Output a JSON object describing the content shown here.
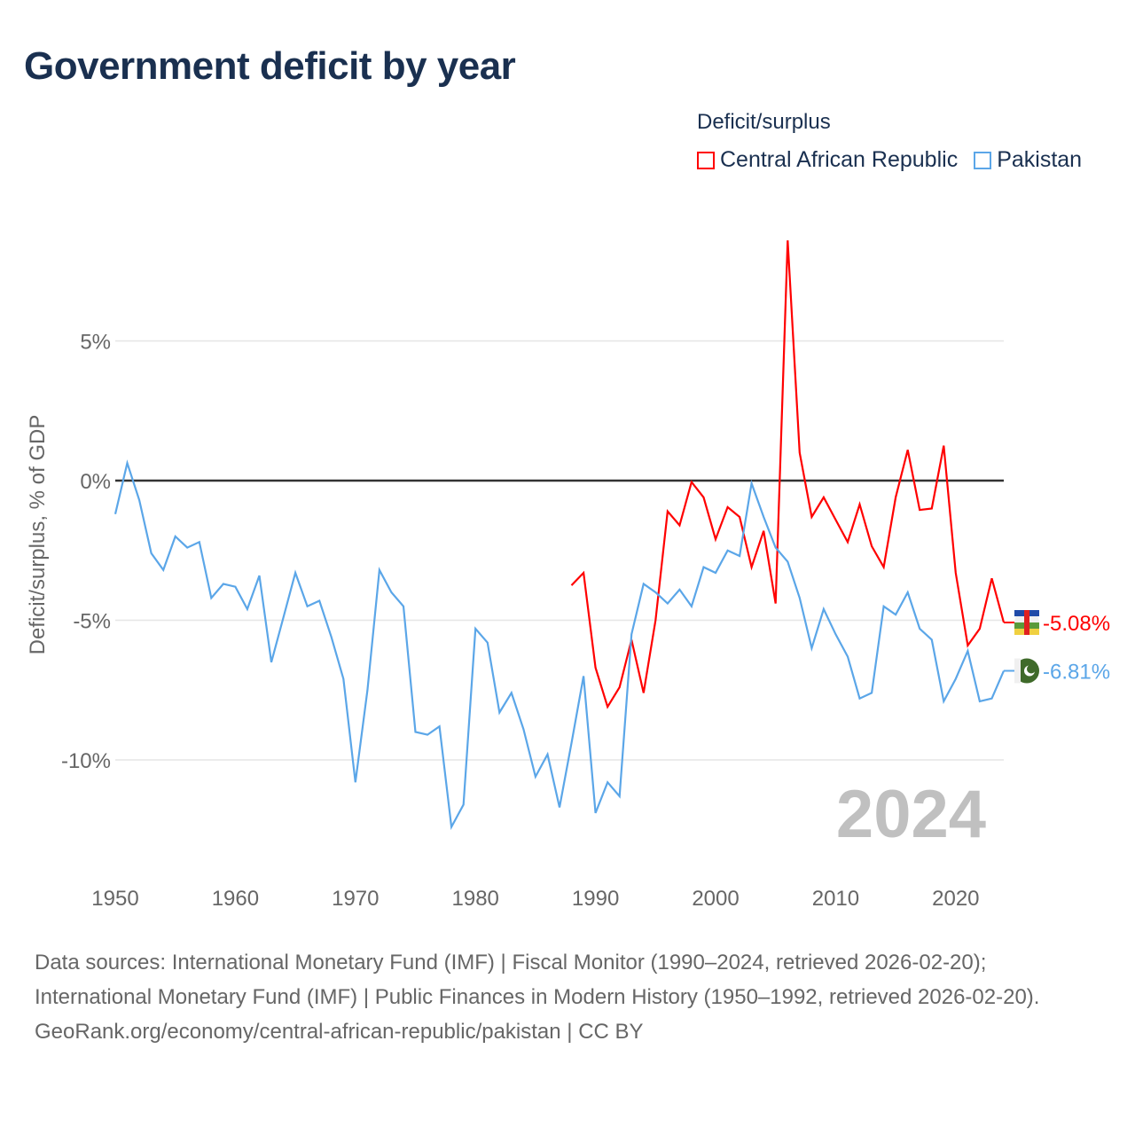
{
  "title": "Government deficit by year",
  "legend": {
    "title": "Deficit/surplus",
    "items": [
      {
        "name": "Central African Republic",
        "color": "#ff0000"
      },
      {
        "name": "Pakistan",
        "color": "#5ba6e8"
      }
    ]
  },
  "chart_data": {
    "type": "line",
    "title": "Government deficit by year",
    "xlabel": "",
    "ylabel": "Deficit/surplus, % of GDP",
    "xlim": [
      1950,
      2024
    ],
    "ylim": [
      -13,
      9
    ],
    "x_ticks": [
      1950,
      1960,
      1970,
      1980,
      1990,
      2000,
      2010,
      2020
    ],
    "y_ticks": [
      {
        "v": 5,
        "label": "5%"
      },
      {
        "v": 0,
        "label": "0%"
      },
      {
        "v": -5,
        "label": "-5%"
      },
      {
        "v": -10,
        "label": "-10%"
      }
    ],
    "year_label": "2024",
    "series": [
      {
        "name": "Central African Republic",
        "color": "#ff0000",
        "end_label": "-5.08%",
        "start_year": 1988,
        "values": [
          -3.75,
          -3.3,
          -6.7,
          -8.1,
          -7.4,
          -5.7,
          -7.6,
          -5.0,
          -1.1,
          -1.6,
          -0.05,
          -0.6,
          -2.1,
          -0.95,
          -1.3,
          -3.1,
          -1.8,
          -4.4,
          8.6,
          1.0,
          -1.3,
          -0.6,
          -1.4,
          -2.2,
          -0.85,
          -2.35,
          -3.1,
          -0.6,
          1.1,
          -1.05,
          -1.0,
          1.25,
          -3.3,
          -5.9,
          -5.3,
          -3.5,
          -5.08
        ]
      },
      {
        "name": "Pakistan",
        "color": "#5ba6e8",
        "end_label": "-6.81%",
        "start_year": 1950,
        "values": [
          -1.2,
          0.63,
          -0.7,
          -2.6,
          -3.2,
          -2.0,
          -2.4,
          -2.2,
          -4.2,
          -3.7,
          -3.8,
          -4.6,
          -3.4,
          -6.5,
          -4.9,
          -3.3,
          -4.5,
          -4.3,
          -5.6,
          -7.1,
          -10.8,
          -7.5,
          -3.2,
          -4.0,
          -4.5,
          -9.0,
          -9.1,
          -8.8,
          -12.4,
          -11.6,
          -5.3,
          -5.8,
          -8.3,
          -7.6,
          -8.9,
          -10.6,
          -9.8,
          -11.7,
          -9.4,
          -7.0,
          -11.9,
          -10.8,
          -11.3,
          -5.5,
          -3.7,
          -4.0,
          -4.4,
          -3.9,
          -4.5,
          -3.1,
          -3.3,
          -2.5,
          -2.7,
          -0.1,
          -1.3,
          -2.4,
          -2.9,
          -4.2,
          -6.0,
          -4.6,
          -5.5,
          -6.3,
          -7.8,
          -7.6,
          -4.5,
          -4.8,
          -4.0,
          -5.3,
          -5.7,
          -7.9,
          -7.1,
          -6.1,
          -7.9,
          -7.8,
          -6.81
        ]
      }
    ]
  },
  "footer": {
    "sources": "Data sources: International Monetary Fund (IMF) | Fiscal Monitor (1990–2024, retrieved 2026-02-20); International Monetary Fund (IMF) | Public Finances in Modern History (1950–1992, retrieved 2026-02-20).",
    "link": "GeoRank.org/economy/central-african-republic/pakistan | CC BY"
  }
}
